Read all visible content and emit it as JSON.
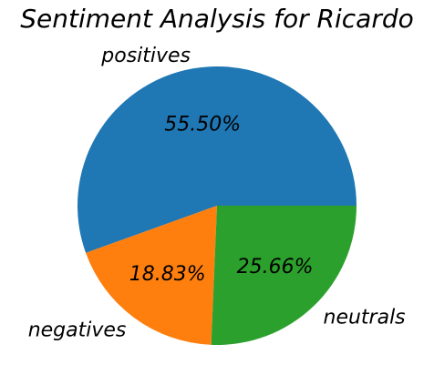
{
  "chart_data": {
    "type": "pie",
    "title": "Sentiment Analysis for Ricardo",
    "categories": [
      "positives",
      "negatives",
      "neutrals"
    ],
    "values": [
      55.5,
      18.83,
      25.66
    ],
    "value_labels": [
      "55.50%",
      "18.83%",
      "25.66%"
    ],
    "colors": [
      "#1f77b4",
      "#ff7f0e",
      "#2ca02c"
    ],
    "start_angle_deg": 0,
    "direction": "counterclockwise",
    "legend": "none"
  }
}
